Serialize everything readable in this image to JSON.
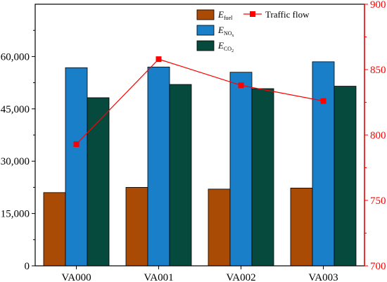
{
  "chart_data": {
    "type": "bar",
    "categories": [
      "VA000",
      "VA001",
      "VA002",
      "VA003"
    ],
    "series": [
      {
        "name": "E",
        "subscript": "fuel",
        "color": "#a94a05",
        "axis": "left",
        "values": [
          21000,
          22500,
          22000,
          22300
        ]
      },
      {
        "name": "E",
        "subscript": "NO",
        "subscript_extra": "x",
        "color": "#1a7fc9",
        "axis": "left",
        "values": [
          56800,
          57000,
          55500,
          58500
        ]
      },
      {
        "name": "E",
        "subscript": "CO",
        "subscript_extra": "2",
        "color": "#064a3d",
        "axis": "left",
        "values": [
          48200,
          52000,
          50800,
          51500
        ]
      }
    ],
    "line_series": {
      "name": "Traffic flow",
      "type": "line",
      "color": "#ff0000",
      "axis": "right",
      "values": [
        793,
        858,
        838,
        826
      ]
    },
    "y_left": {
      "range": [
        0,
        75000
      ],
      "ticks": [
        "0",
        "15,000",
        "30,000",
        "45,000",
        "60,000"
      ],
      "tick_values": [
        0,
        15000,
        30000,
        45000,
        60000
      ]
    },
    "y_right": {
      "range": [
        700,
        900
      ],
      "ticks": [
        "700",
        "750",
        "800",
        "850",
        "900"
      ],
      "tick_values": [
        700,
        750,
        800,
        850,
        900
      ],
      "color": "#ff0000"
    },
    "grid": false,
    "legend": "top-center"
  }
}
